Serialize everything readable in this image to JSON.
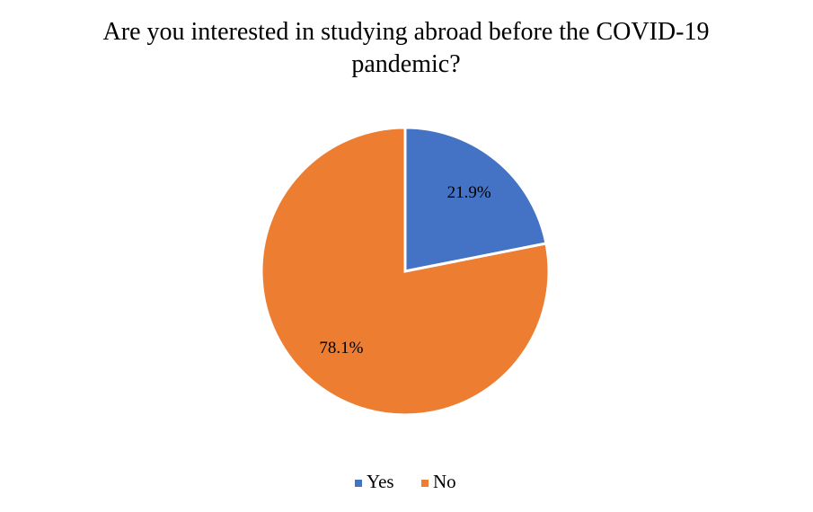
{
  "chart_data": {
    "type": "pie",
    "title": "Are you interested in studying abroad before the COVID-19 pandemic?",
    "categories": [
      "Yes",
      "No"
    ],
    "values": [
      21.9,
      78.1
    ],
    "value_labels": [
      "21.9%",
      "78.1%"
    ],
    "colors": [
      "#4472c4",
      "#ed7d31"
    ],
    "legend": "bottom"
  }
}
